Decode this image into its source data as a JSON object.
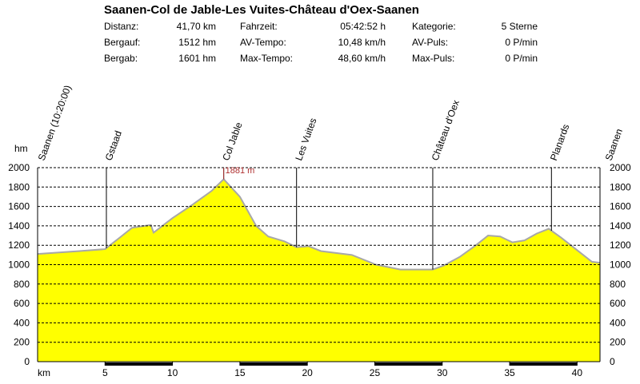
{
  "header": {
    "title": "Saanen-Col de Jable-Les Vuites-Château d'Oex-Saanen",
    "stats": [
      [
        [
          "Distanz:",
          "41,70 km"
        ],
        [
          "Fahrzeit:",
          "05:42:52 h"
        ],
        [
          "Kategorie:",
          "5 Sterne"
        ]
      ],
      [
        [
          "Bergauf:",
          "1512 hm"
        ],
        [
          "AV-Tempo:",
          "10,48 km/h"
        ],
        [
          "AV-Puls:",
          "0 P/min"
        ]
      ],
      [
        [
          "Bergab:",
          "1601 hm"
        ],
        [
          "Max-Tempo:",
          "48,60 km/h"
        ],
        [
          "Max-Puls:",
          "0 P/min"
        ]
      ]
    ]
  },
  "chart_data": {
    "type": "area",
    "x_label": "km",
    "y_label": "hm",
    "x": [
      0,
      3.1,
      5.0,
      6.1,
      7.0,
      8.4,
      8.6,
      10.0,
      11.5,
      12.9,
      13.8,
      15.0,
      16.2,
      17.1,
      18.3,
      19.2,
      20.1,
      21.0,
      23.3,
      25.1,
      26.9,
      29.3,
      30.1,
      31.3,
      32.5,
      33.4,
      34.3,
      35.2,
      36.1,
      37.0,
      37.9,
      38.8,
      40.0,
      41.1,
      41.7
    ],
    "values": [
      1110,
      1140,
      1160,
      1280,
      1380,
      1410,
      1330,
      1480,
      1620,
      1760,
      1881,
      1700,
      1400,
      1290,
      1240,
      1180,
      1190,
      1140,
      1100,
      1000,
      950,
      950,
      990,
      1080,
      1200,
      1300,
      1290,
      1230,
      1250,
      1320,
      1370,
      1280,
      1150,
      1030,
      1020
    ],
    "color": "#ffff00",
    "line_color": "#a8a8a8",
    "xlim": [
      0,
      41.7
    ],
    "xticks": [
      5,
      10,
      15,
      20,
      25,
      30,
      35,
      40
    ],
    "ylim": [
      0,
      2000
    ],
    "yticks": [
      0,
      200,
      400,
      600,
      800,
      1000,
      1200,
      1400,
      1600,
      1800,
      2000
    ],
    "grid": true,
    "annotation": {
      "text": "1881 m",
      "x": 13.8,
      "y": 1881
    },
    "waypoints": [
      {
        "label": "Saanen  (10:20:00)",
        "km": 0
      },
      {
        "label": "Gstaad",
        "km": 5.1
      },
      {
        "label": "Col Jable",
        "km": 13.8
      },
      {
        "label": "Les Vuites",
        "km": 19.2
      },
      {
        "label": "Château d'Oex",
        "km": 29.3
      },
      {
        "label": "Planards",
        "km": 38.1
      },
      {
        "label": "Saanen",
        "km": 41.7
      }
    ]
  }
}
